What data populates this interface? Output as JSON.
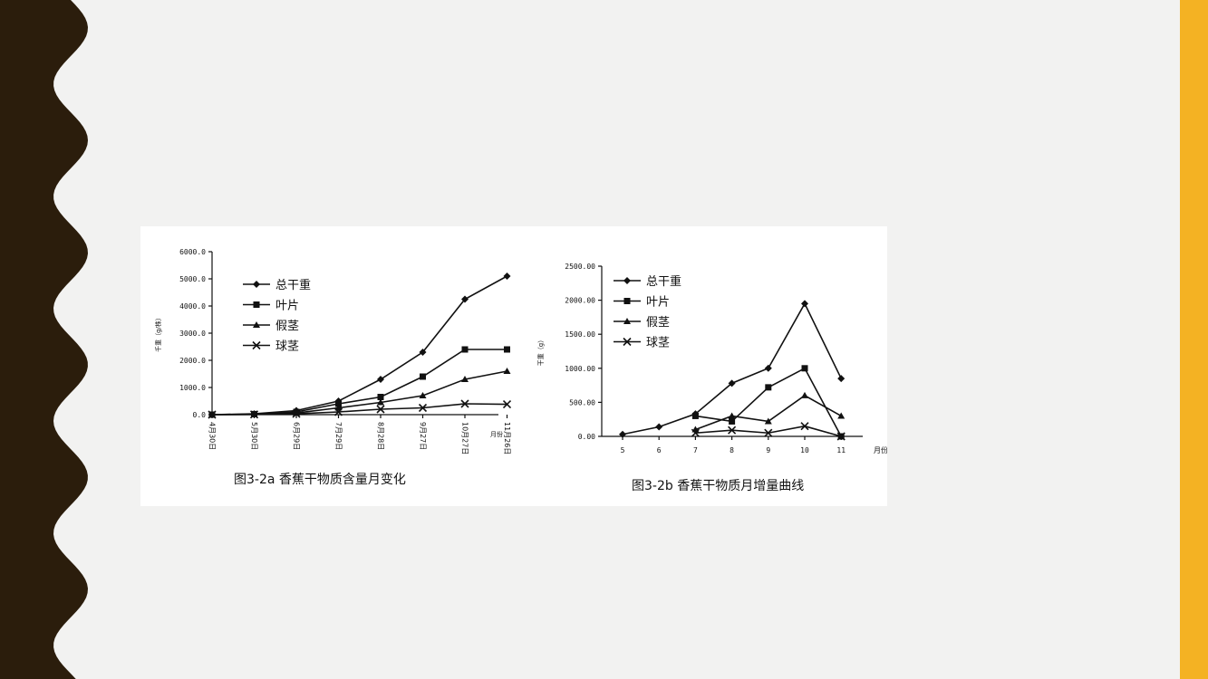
{
  "theme": {
    "left_band_color": "#2b1d0c",
    "right_band_color": "#f4b223",
    "background": "#f2f2f1"
  },
  "chart_data": [
    {
      "type": "line",
      "caption": "图3-2a   香蕉干物质含量月变化",
      "xlabel": "",
      "ylabel": "千重（g/株）",
      "categories": [
        "4月30日",
        "5月30日",
        "6月29日",
        "7月29日",
        "8月28日",
        "9月27日",
        "10月27日",
        "11月26日"
      ],
      "x_extra_label": "月份",
      "y_ticks": [
        "0.0",
        "1000.0",
        "2000.0",
        "3000.0",
        "4000.0",
        "5000.0",
        "6000.0"
      ],
      "ylim": [
        0,
        6000
      ],
      "legend_position": "top-left",
      "series": [
        {
          "name": "总干重",
          "marker": "diamond",
          "values": [
            0,
            30,
            150,
            500,
            1300,
            2300,
            4250,
            5100
          ]
        },
        {
          "name": "叶片",
          "marker": "square",
          "values": [
            0,
            20,
            100,
            400,
            650,
            1400,
            2400,
            2400
          ]
        },
        {
          "name": "假茎",
          "marker": "triangle",
          "values": [
            0,
            10,
            60,
            250,
            450,
            700,
            1300,
            1600
          ]
        },
        {
          "name": "球茎",
          "marker": "cross",
          "values": [
            0,
            5,
            30,
            100,
            200,
            250,
            400,
            380
          ]
        }
      ]
    },
    {
      "type": "line",
      "caption": "图3-2b  香蕉干物质月增量曲线",
      "xlabel": "月份",
      "ylabel": "干重（g）",
      "categories": [
        "5",
        "6",
        "7",
        "8",
        "9",
        "10",
        "11"
      ],
      "y_ticks": [
        "0.00",
        "500.00",
        "1000.00",
        "1500.00",
        "2000.00",
        "2500.00"
      ],
      "ylim": [
        0,
        2500
      ],
      "legend_position": "top-left",
      "series": [
        {
          "name": "总干重",
          "marker": "diamond",
          "values": [
            30,
            140,
            330,
            780,
            1000,
            1950,
            850
          ]
        },
        {
          "name": "叶片",
          "marker": "square",
          "values": [
            null,
            null,
            300,
            220,
            720,
            1000,
            0
          ]
        },
        {
          "name": "假茎",
          "marker": "triangle",
          "values": [
            null,
            null,
            100,
            300,
            220,
            600,
            300
          ]
        },
        {
          "name": "球茎",
          "marker": "cross",
          "values": [
            null,
            null,
            50,
            90,
            50,
            150,
            0
          ]
        }
      ]
    }
  ]
}
